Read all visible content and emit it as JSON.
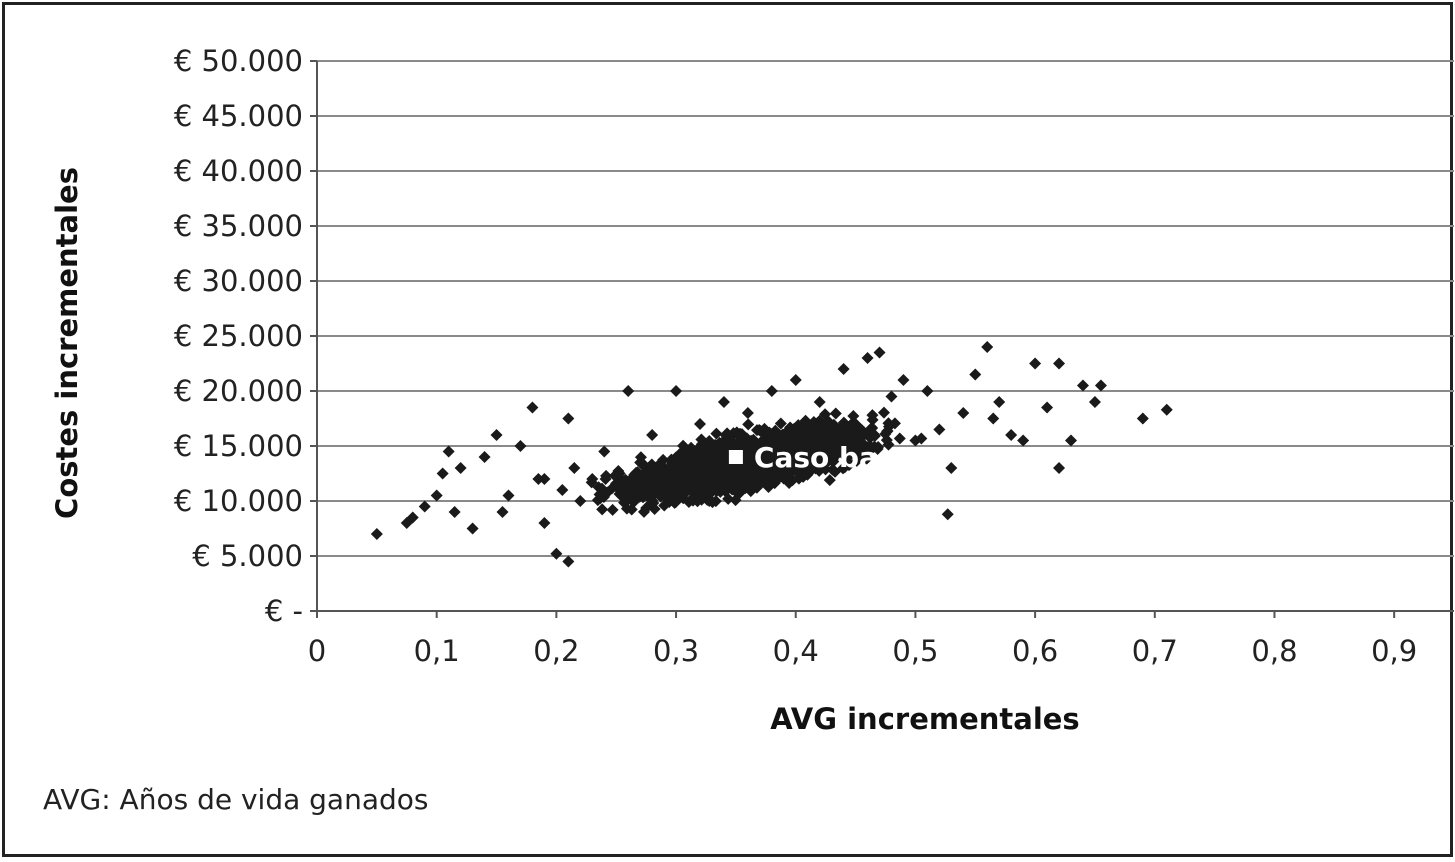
{
  "chart_data": {
    "type": "scatter",
    "title": "",
    "xlabel": "AVG incrementales",
    "ylabel": "Costes incrementales",
    "xlim": [
      0,
      0.95
    ],
    "ylim": [
      0,
      50000
    ],
    "x_ticks": [
      "0",
      "0,1",
      "0,2",
      "0,3",
      "0,4",
      "0,5",
      "0,6",
      "0,7",
      "0,8",
      "0,9"
    ],
    "x_tick_values": [
      0,
      0.1,
      0.2,
      0.3,
      0.4,
      0.5,
      0.6,
      0.7,
      0.8,
      0.9
    ],
    "y_ticks": [
      "€ -",
      "€ 5.000",
      "€ 10.000",
      "€ 15.000",
      "€ 20.000",
      "€ 25.000",
      "€ 30.000",
      "€ 35.000",
      "€ 40.000",
      "€ 45.000",
      "€ 50.000"
    ],
    "y_tick_values": [
      0,
      5000,
      10000,
      15000,
      20000,
      25000,
      30000,
      35000,
      40000,
      45000,
      50000
    ],
    "grid": "horizontal",
    "series": [
      {
        "marker": "diamond",
        "color": "#1a1a1a",
        "x": [
          0.05,
          0.075,
          0.08,
          0.09,
          0.1,
          0.105,
          0.11,
          0.115,
          0.12,
          0.13,
          0.14,
          0.15,
          0.155,
          0.16,
          0.17,
          0.18,
          0.185,
          0.19,
          0.2,
          0.205,
          0.21,
          0.215,
          0.22,
          0.23,
          0.24,
          0.25,
          0.26,
          0.27,
          0.28,
          0.29,
          0.3,
          0.31,
          0.32,
          0.33,
          0.34,
          0.35,
          0.36,
          0.37,
          0.38,
          0.39,
          0.4,
          0.41,
          0.42,
          0.43,
          0.44,
          0.45,
          0.46,
          0.47,
          0.48,
          0.49,
          0.5,
          0.51,
          0.52,
          0.53,
          0.54,
          0.55,
          0.56,
          0.565,
          0.57,
          0.58,
          0.59,
          0.6,
          0.61,
          0.62,
          0.63,
          0.64,
          0.65,
          0.655,
          0.69,
          0.71,
          0.21,
          0.19,
          0.527,
          0.62
        ],
        "y": [
          7000,
          8000,
          8500,
          9500,
          10500,
          12500,
          14500,
          9000,
          13000,
          7500,
          14000,
          16000,
          9000,
          10500,
          15000,
          18500,
          12000,
          8000,
          5200,
          11000,
          4500,
          13000,
          10000,
          12000,
          14500,
          11500,
          20000,
          13500,
          16000,
          12500,
          20000,
          14000,
          17000,
          12500,
          19000,
          15000,
          18000,
          13500,
          20000,
          15500,
          21000,
          16000,
          19000,
          14500,
          22000,
          17000,
          23000,
          23500,
          19500,
          21000,
          15500,
          20000,
          16500,
          13000,
          18000,
          21500,
          24000,
          17500,
          19000,
          16000,
          15500,
          22500,
          18500,
          22500,
          15500,
          20500,
          19000,
          20500,
          17500,
          18300,
          17500,
          12000,
          8800,
          13000
        ]
      }
    ],
    "annotations": [
      {
        "label": "Caso base",
        "x": 0.35,
        "y": 14000,
        "marker": "square",
        "color": "#ffffff"
      }
    ]
  },
  "footnote": "AVG: Años de vida ganados"
}
